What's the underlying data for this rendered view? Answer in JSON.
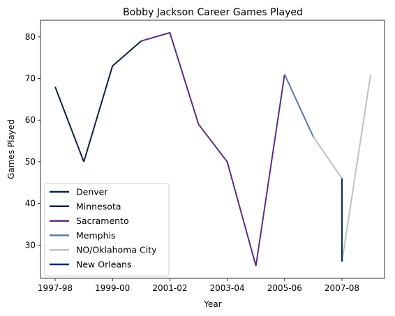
{
  "chart_data": {
    "type": "line",
    "title": "Bobby Jackson  Career Games Played",
    "xlabel": "Year",
    "ylabel": "Games Played",
    "x_categories": [
      "1997-98",
      "1998-99",
      "1999-00",
      "2000-01",
      "2001-02",
      "2002-03",
      "2003-04",
      "2004-05",
      "2005-06",
      "2006-07",
      "2007-08",
      "2008-09"
    ],
    "x_ticks": [
      "1997-98",
      "1999-00",
      "2001-02",
      "2003-04",
      "2005-06",
      "2007-08"
    ],
    "y_ticks": [
      30,
      40,
      50,
      60,
      70,
      80
    ],
    "ylim": [
      22,
      84
    ],
    "grid": false,
    "legend_position": "lower-left",
    "series": [
      {
        "name": "Denver",
        "color": "#0e2240",
        "points": [
          [
            "1997-98",
            68
          ],
          [
            "1998-99",
            50
          ]
        ]
      },
      {
        "name": "Minnesota",
        "color": "#0c2340",
        "points": [
          [
            "1998-99",
            50
          ],
          [
            "1999-00",
            73
          ],
          [
            "2000-01",
            79
          ]
        ]
      },
      {
        "name": "Sacramento",
        "color": "#5a2d81",
        "points": [
          [
            "2000-01",
            79
          ],
          [
            "2001-02",
            81
          ],
          [
            "2002-03",
            59
          ],
          [
            "2003-04",
            50
          ],
          [
            "2004-05",
            25
          ],
          [
            "2005-06",
            71
          ]
        ]
      },
      {
        "name": "Memphis",
        "color": "#5d76a9",
        "points": [
          [
            "2005-06",
            71
          ],
          [
            "2006-07",
            56
          ]
        ]
      },
      {
        "name": "NO/Oklahoma City",
        "color": "#bec0c2",
        "points": [
          [
            "2006-07",
            56
          ],
          [
            "2007-08",
            46
          ],
          [
            "2007-08",
            26
          ],
          [
            "2008-09",
            71
          ]
        ]
      },
      {
        "name": "New Orleans",
        "color": "#002b5c",
        "points": [
          [
            "2007-08",
            46
          ],
          [
            "2007-08",
            26
          ]
        ]
      }
    ]
  }
}
